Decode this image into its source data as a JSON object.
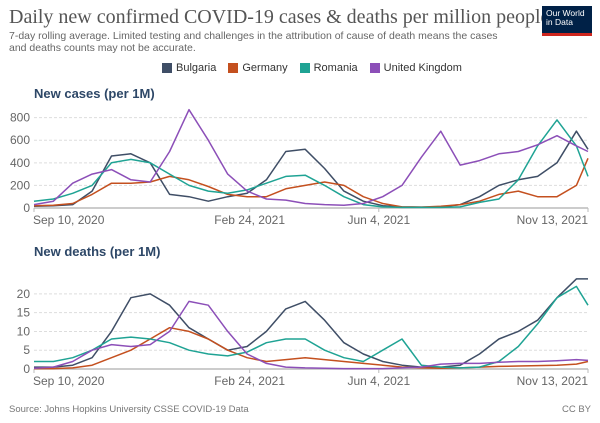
{
  "header": {
    "title": "Daily new confirmed COVID-19 cases & deaths per million people",
    "subtitle": "7-day rolling average. Limited testing and challenges in the attribution of cause of death means the cases and deaths counts may not be accurate.",
    "logo_text": "Our World in Data"
  },
  "footer": {
    "source": "Source: Johns Hopkins University CSSE COVID-19 Data",
    "license": "CC BY"
  },
  "chart_data": {
    "type": "line",
    "legend_placement": "top",
    "legend": [
      "Bulgaria",
      "Germany",
      "Romania",
      "United Kingdom"
    ],
    "colors": {
      "Bulgaria": "#3f4e66",
      "Germany": "#c4501f",
      "Romania": "#1fa394",
      "United Kingdom": "#8c4fb8"
    },
    "x": [
      "2020-09-10",
      "2020-09-25",
      "2020-10-10",
      "2020-10-25",
      "2020-11-09",
      "2020-11-24",
      "2020-12-09",
      "2020-12-24",
      "2021-01-08",
      "2021-01-23",
      "2021-02-07",
      "2021-02-22",
      "2021-03-09",
      "2021-03-24",
      "2021-04-08",
      "2021-04-23",
      "2021-05-08",
      "2021-05-23",
      "2021-06-07",
      "2021-06-22",
      "2021-07-07",
      "2021-07-22",
      "2021-08-06",
      "2021-08-21",
      "2021-09-05",
      "2021-09-20",
      "2021-10-05",
      "2021-10-20",
      "2021-11-04",
      "2021-11-13"
    ],
    "xticks": [
      "Sep 10, 2020",
      "Feb 24, 2021",
      "Jun 4, 2021",
      "Nov 13, 2021"
    ],
    "xtick_dates": [
      "2020-09-10",
      "2021-02-24",
      "2021-06-04",
      "2021-11-13"
    ],
    "grid": true,
    "panels": [
      {
        "title": "New cases (per 1M)",
        "ylim": [
          0,
          850
        ],
        "yticks": [
          0,
          200,
          400,
          600,
          800
        ],
        "series": [
          {
            "name": "Bulgaria",
            "values": [
              15,
              20,
              30,
              150,
              460,
              480,
              400,
              120,
              100,
              60,
              100,
              130,
              250,
              500,
              520,
              350,
              150,
              60,
              20,
              10,
              8,
              10,
              30,
              100,
              200,
              250,
              280,
              400,
              680,
              520
            ]
          },
          {
            "name": "Germany",
            "values": [
              20,
              25,
              40,
              120,
              220,
              220,
              230,
              280,
              250,
              190,
              120,
              100,
              100,
              170,
              200,
              230,
              200,
              100,
              40,
              10,
              8,
              15,
              30,
              60,
              120,
              150,
              100,
              100,
              200,
              440
            ]
          },
          {
            "name": "Romania",
            "values": [
              60,
              80,
              130,
              200,
              400,
              430,
              400,
              300,
              200,
              150,
              130,
              160,
              220,
              280,
              290,
              200,
              100,
              30,
              10,
              5,
              5,
              5,
              10,
              50,
              80,
              250,
              550,
              780,
              550,
              280
            ]
          },
          {
            "name": "United Kingdom",
            "values": [
              30,
              60,
              220,
              300,
              340,
              250,
              230,
              500,
              870,
              600,
              300,
              150,
              80,
              70,
              40,
              30,
              25,
              40,
              100,
              200,
              450,
              680,
              380,
              420,
              480,
              500,
              560,
              640,
              550,
              500
            ]
          }
        ]
      },
      {
        "title": "New deaths (per 1M)",
        "ylim": [
          0,
          24.5
        ],
        "yticks": [
          0,
          5,
          10,
          15,
          20
        ],
        "series": [
          {
            "name": "Bulgaria",
            "values": [
              0.5,
              0.5,
              1,
              3,
              10,
              19,
              20,
              17,
              11,
              8,
              5,
              6,
              10,
              16,
              18,
              13,
              7,
              4,
              2,
              1,
              0.5,
              0.5,
              1,
              4,
              8,
              10,
              13,
              19,
              24,
              24
            ]
          },
          {
            "name": "Germany",
            "values": [
              0.1,
              0.1,
              0.3,
              1,
              3,
              5,
              8,
              11,
              10,
              8,
              5,
              3,
              2,
              2.5,
              3,
              2.5,
              2,
              1.5,
              1,
              0.5,
              0.3,
              0.2,
              0.3,
              0.5,
              0.7,
              0.8,
              0.9,
              1,
              1.3,
              2
            ]
          },
          {
            "name": "Romania",
            "values": [
              2,
              2,
              3,
              5,
              8,
              8.5,
              8,
              7,
              5,
              4,
              3.5,
              4.5,
              7,
              8,
              8,
              5,
              3,
              2,
              5,
              8,
              1,
              0.5,
              0.3,
              0.5,
              2,
              6,
              12,
              19,
              22,
              17
            ]
          },
          {
            "name": "United Kingdom",
            "values": [
              0.2,
              0.5,
              2,
              5,
              6.5,
              6,
              6.5,
              10,
              18,
              17,
              10,
              4,
              1.5,
              0.5,
              0.3,
              0.2,
              0.1,
              0.1,
              0.1,
              0.3,
              0.5,
              1.3,
              1.5,
              1.5,
              1.8,
              2,
              2,
              2.2,
              2.5,
              2.3
            ]
          }
        ]
      }
    ]
  }
}
